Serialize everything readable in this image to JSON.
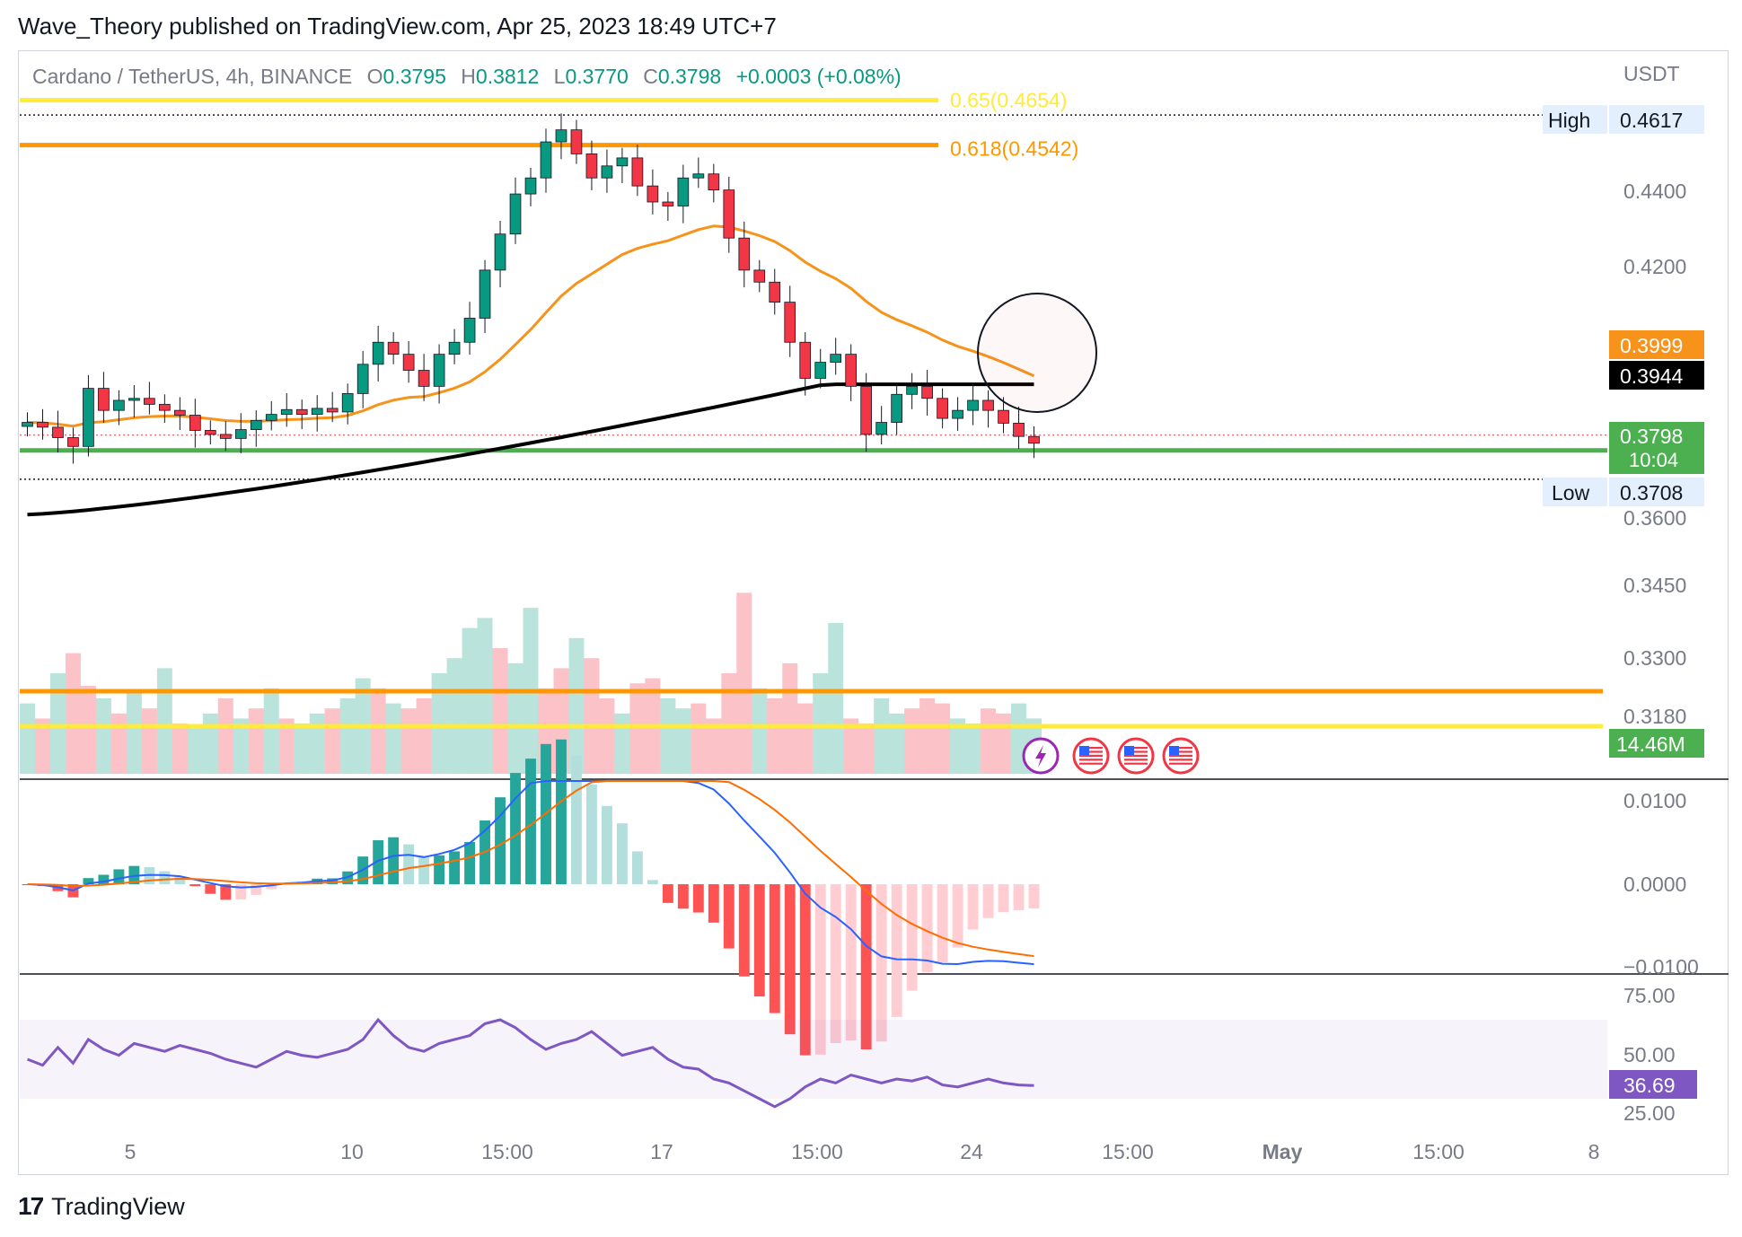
{
  "header": {
    "text": "Wave_Theory published on TradingView.com, Apr 25, 2023 18:49 UTC+7"
  },
  "legend": {
    "symbol": "Cardano / TetherUS, 4h, BINANCE",
    "o_label": "O",
    "o": "0.3795",
    "h_label": "H",
    "h": "0.3812",
    "l_label": "L",
    "l": "0.3770",
    "c_label": "C",
    "c": "0.3798",
    "change": "+0.0003 (+0.08%)"
  },
  "footer": {
    "logo": "17",
    "brand": "TradingView"
  },
  "colors": {
    "up": "#089981",
    "down": "#f23645",
    "ema_orange": "#f7931a",
    "ema_black": "#000000",
    "fib65": "#ffeb3b",
    "fib618": "#ff9800",
    "support": "#4caf50",
    "macd": "#2962ff",
    "signal": "#ff6d00",
    "rsi": "#7e57c2"
  },
  "chart_data": [
    {
      "type": "candlestick",
      "title": "",
      "currency_label": "USDT",
      "x_ticks": [
        "5",
        "10",
        "15:00",
        "17",
        "15:00",
        "24",
        "15:00",
        "May",
        "15:00",
        "8"
      ],
      "price_ticks": [
        "0.4400",
        "0.4200",
        "0.3600",
        "0.3450",
        "0.3300",
        "0.3180"
      ],
      "high": {
        "label": "High",
        "value": "0.4617"
      },
      "low": {
        "label": "Low",
        "value": "0.3708"
      },
      "last_price": {
        "value": "0.3798",
        "countdown": "10:04"
      },
      "ema_orange_value": "0.3999",
      "ema_black_value": "0.3944",
      "fib_levels": [
        {
          "label": "0.65(0.4654)",
          "value": 0.4654
        },
        {
          "label": "0.618(0.4542)",
          "value": 0.4542
        }
      ],
      "support_level": 0.3798,
      "series_close": [
        0.385,
        0.3838,
        0.3812,
        0.379,
        0.3935,
        0.388,
        0.3905,
        0.391,
        0.3895,
        0.388,
        0.3868,
        0.383,
        0.382,
        0.381,
        0.3832,
        0.3855,
        0.387,
        0.3882,
        0.387,
        0.3885,
        0.3876,
        0.3922,
        0.3995,
        0.405,
        0.402,
        0.398,
        0.394,
        0.402,
        0.405,
        0.411,
        0.423,
        0.432,
        0.442,
        0.446,
        0.455,
        0.458,
        0.452,
        0.446,
        0.449,
        0.451,
        0.444,
        0.44,
        0.439,
        0.446,
        0.447,
        0.443,
        0.431,
        0.423,
        0.42,
        0.415,
        0.405,
        0.396,
        0.4,
        0.402,
        0.394,
        0.382,
        0.385,
        0.392,
        0.394,
        0.391,
        0.386,
        0.388,
        0.3905,
        0.388,
        0.3848,
        0.3815,
        0.3798
      ]
    },
    {
      "type": "bar",
      "title": "Volume",
      "last_value": "14.46M",
      "values": [
        28,
        22,
        40,
        48,
        35,
        30,
        24,
        32,
        26,
        42,
        20,
        18,
        24,
        30,
        22,
        26,
        34,
        22,
        20,
        24,
        26,
        30,
        38,
        34,
        28,
        26,
        30,
        40,
        46,
        58,
        62,
        50,
        44,
        66,
        34,
        42,
        54,
        46,
        30,
        24,
        36,
        38,
        30,
        26,
        28,
        22,
        40,
        72,
        34,
        30,
        44,
        28,
        40,
        60,
        22,
        20,
        30,
        24,
        26,
        30,
        28,
        22,
        20,
        26,
        24,
        28,
        22
      ],
      "up_flags": [
        1,
        0,
        1,
        0,
        0,
        1,
        0,
        1,
        0,
        1,
        0,
        1,
        1,
        0,
        1,
        0,
        1,
        0,
        1,
        1,
        0,
        1,
        1,
        0,
        1,
        0,
        0,
        1,
        1,
        1,
        1,
        0,
        1,
        1,
        0,
        0,
        1,
        0,
        0,
        1,
        0,
        0,
        1,
        1,
        0,
        0,
        0,
        0,
        1,
        0,
        0,
        0,
        1,
        1,
        0,
        0,
        1,
        1,
        0,
        0,
        0,
        1,
        1,
        0,
        0,
        1,
        1
      ]
    },
    {
      "type": "line",
      "title": "MACD",
      "y_ticks": [
        "0.0100",
        "0.0000",
        "−0.0100"
      ]
    },
    {
      "type": "line",
      "title": "RSI",
      "y_ticks": [
        "75.00",
        "50.00",
        "25.00"
      ],
      "last_value": "36.69",
      "values": [
        50,
        47,
        56,
        48,
        60,
        55,
        52,
        58,
        56,
        54,
        57,
        55,
        53,
        50,
        48,
        46,
        50,
        54,
        52,
        51,
        53,
        55,
        60,
        70,
        62,
        56,
        54,
        58,
        60,
        62,
        68,
        70,
        66,
        60,
        55,
        58,
        60,
        64,
        58,
        52,
        54,
        56,
        50,
        46,
        45,
        40,
        38,
        34,
        30,
        26,
        30,
        36,
        40,
        38,
        42,
        40,
        38,
        40,
        39,
        41,
        37,
        36,
        38,
        40,
        38,
        37,
        36.69
      ]
    }
  ],
  "event_icons": [
    "flash-icon",
    "us-flag-icon",
    "us-flag-icon",
    "us-flag-icon"
  ]
}
